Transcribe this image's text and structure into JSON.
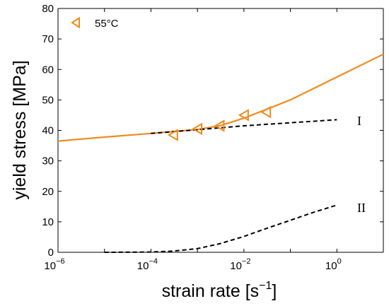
{
  "chart_data": {
    "type": "scatter",
    "xscale": "log",
    "xlim": [
      1e-06,
      10
    ],
    "ylim": [
      0,
      80
    ],
    "xlabel": "strain rate [s",
    "xlabel_superscript": "−1",
    "xlabel_suffix": "]",
    "ylabel": "yield stress [MPa]",
    "xticks": [
      {
        "base": "10",
        "exp": "−6",
        "value": 1e-06
      },
      {
        "base": "10",
        "exp": "−4",
        "value": 0.0001
      },
      {
        "base": "10",
        "exp": "−2",
        "value": 0.01
      },
      {
        "base": "10",
        "exp": "0",
        "value": 1
      }
    ],
    "yticks": [
      0,
      10,
      20,
      30,
      40,
      50,
      60,
      70,
      80
    ],
    "grid": false,
    "legend_position": "top-left",
    "colors": {
      "orange": "#f08a1e",
      "black": "#000000"
    },
    "series": [
      {
        "name": "55°C",
        "kind": "markers",
        "marker": "triangle-left",
        "color": "#f08a1e",
        "x": [
          0.0003,
          0.001,
          0.003,
          0.01,
          0.03
        ],
        "y": [
          38.5,
          40.5,
          41.5,
          45,
          46
        ]
      },
      {
        "kind": "line",
        "style": "solid",
        "color": "#f08a1e",
        "x": [
          1e-06,
          1e-05,
          0.0001,
          0.001,
          0.003,
          0.01,
          0.1,
          1,
          10
        ],
        "y": [
          36.5,
          37.8,
          39,
          40.3,
          41.5,
          44,
          50,
          57.5,
          65
        ]
      },
      {
        "kind": "line",
        "style": "dashed",
        "color": "#000000",
        "label": "I",
        "x": [
          0.0001,
          0.001,
          0.01,
          0.1,
          1
        ],
        "y": [
          39,
          40.2,
          41.5,
          42.5,
          43.5
        ]
      },
      {
        "kind": "line",
        "style": "dashed",
        "color": "#000000",
        "label": "II",
        "x": [
          1e-05,
          3e-05,
          0.0001,
          0.0003,
          0.001,
          0.003,
          0.01,
          0.03,
          0.1,
          0.3,
          1
        ],
        "y": [
          0,
          0.02,
          0.1,
          0.4,
          1.2,
          2.8,
          5.2,
          7.8,
          10.5,
          13,
          15.5
        ]
      }
    ],
    "annotations": [
      {
        "text": "I",
        "x": 3,
        "y": 43
      },
      {
        "text": "II",
        "x": 3,
        "y": 15
      }
    ]
  }
}
